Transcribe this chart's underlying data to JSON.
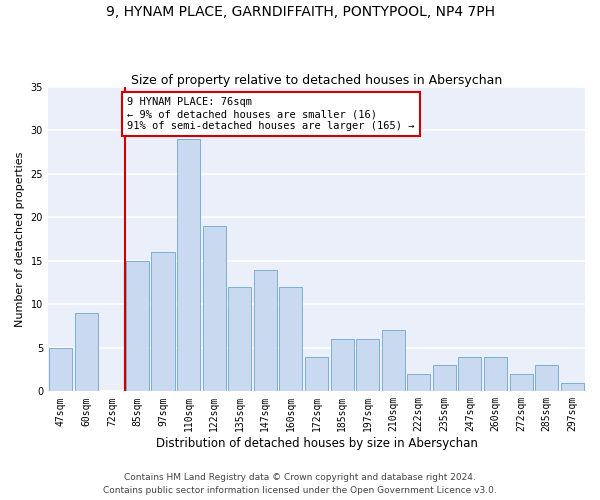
{
  "title": "9, HYNAM PLACE, GARNDIFFAITH, PONTYPOOL, NP4 7PH",
  "subtitle": "Size of property relative to detached houses in Abersychan",
  "xlabel": "Distribution of detached houses by size in Abersychan",
  "ylabel": "Number of detached properties",
  "categories": [
    "47sqm",
    "60sqm",
    "72sqm",
    "85sqm",
    "97sqm",
    "110sqm",
    "122sqm",
    "135sqm",
    "147sqm",
    "160sqm",
    "172sqm",
    "185sqm",
    "197sqm",
    "210sqm",
    "222sqm",
    "235sqm",
    "247sqm",
    "260sqm",
    "272sqm",
    "285sqm",
    "297sqm"
  ],
  "values": [
    5,
    9,
    0,
    15,
    16,
    29,
    19,
    12,
    14,
    12,
    4,
    6,
    6,
    7,
    2,
    3,
    4,
    4,
    2,
    3,
    1
  ],
  "bar_color": "#c9d9f0",
  "bar_edge_color": "#7bafd4",
  "background_color": "#eaeffa",
  "grid_color": "#ffffff",
  "fig_background": "#ffffff",
  "vline_x": 2.5,
  "vline_color": "#cc0000",
  "annotation_text": "9 HYNAM PLACE: 76sqm\n← 9% of detached houses are smaller (16)\n91% of semi-detached houses are larger (165) →",
  "annotation_box_color": "#ffffff",
  "annotation_box_edge": "#cc0000",
  "footer1": "Contains HM Land Registry data © Crown copyright and database right 2024.",
  "footer2": "Contains public sector information licensed under the Open Government Licence v3.0.",
  "ylim": [
    0,
    35
  ],
  "yticks": [
    0,
    5,
    10,
    15,
    20,
    25,
    30,
    35
  ],
  "title_fontsize": 10,
  "subtitle_fontsize": 9,
  "xlabel_fontsize": 8.5,
  "ylabel_fontsize": 8,
  "tick_fontsize": 7,
  "annotation_fontsize": 7.5,
  "footer_fontsize": 6.5
}
